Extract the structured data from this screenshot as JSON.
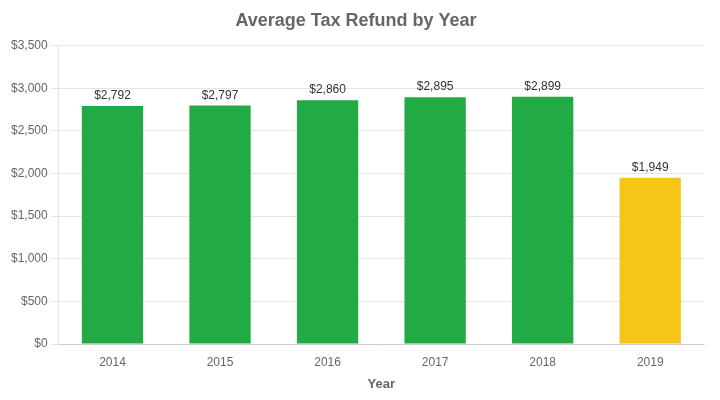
{
  "chart_data": {
    "type": "bar",
    "title": "Average Tax Refund by Year",
    "xlabel": "Year",
    "categories": [
      "2014",
      "2015",
      "2016",
      "2017",
      "2018",
      "2019"
    ],
    "values": [
      2792,
      2797,
      2860,
      2895,
      2899,
      1949
    ],
    "value_labels": [
      "$2,792",
      "$2,797",
      "$2,860",
      "$2,895",
      "$2,899",
      "$1,949"
    ],
    "colors": [
      "#22aa44",
      "#22aa44",
      "#22aa44",
      "#22aa44",
      "#22aa44",
      "#f5c518"
    ],
    "ylim": [
      0,
      3500
    ],
    "yticks": [
      {
        "value": 0,
        "label": "$0"
      },
      {
        "value": 500,
        "label": "$500"
      },
      {
        "value": 1000,
        "label": "$1,000"
      },
      {
        "value": 1500,
        "label": "$1,500"
      },
      {
        "value": 2000,
        "label": "$2,000"
      },
      {
        "value": 2500,
        "label": "$2,500"
      },
      {
        "value": 3000,
        "label": "$3,000"
      },
      {
        "value": 3500,
        "label": "$3,500"
      }
    ],
    "grid": true,
    "data_labels": true
  }
}
